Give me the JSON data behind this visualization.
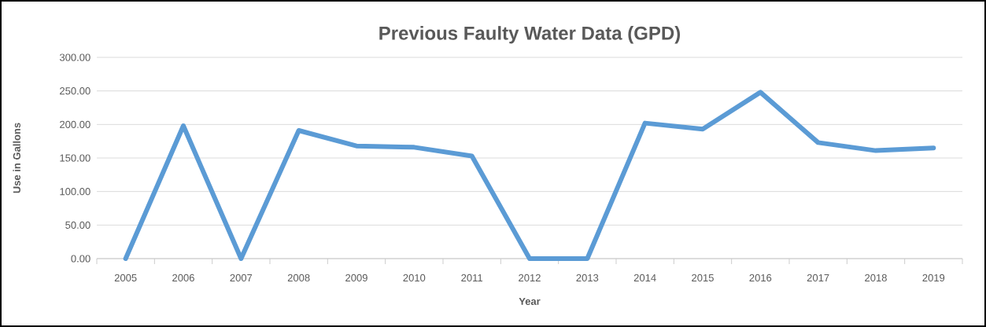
{
  "chart_data": {
    "type": "line",
    "title": "Previous Faulty Water Data (GPD)",
    "xlabel": "Year",
    "ylabel": "Use in Gallons",
    "categories": [
      "2005",
      "2006",
      "2007",
      "2008",
      "2009",
      "2010",
      "2011",
      "2012",
      "2013",
      "2014",
      "2015",
      "2016",
      "2017",
      "2018",
      "2019"
    ],
    "series": [
      {
        "color": "#5b9bd5",
        "values": [
          0,
          198,
          0,
          191,
          168,
          166,
          153,
          0,
          0,
          202,
          193,
          248,
          173,
          161,
          165
        ]
      }
    ],
    "ylim": [
      0,
      300
    ],
    "yticks": [
      {
        "value": 0,
        "label": "0.00"
      },
      {
        "value": 50,
        "label": "50.00"
      },
      {
        "value": 100,
        "label": "100.00"
      },
      {
        "value": 150,
        "label": "150.00"
      },
      {
        "value": 200,
        "label": "200.00"
      },
      {
        "value": 250,
        "label": "250.00"
      },
      {
        "value": 300,
        "label": "300.00"
      }
    ],
    "grid": "y",
    "legend": false,
    "marker": "none",
    "line_style": "solid"
  }
}
